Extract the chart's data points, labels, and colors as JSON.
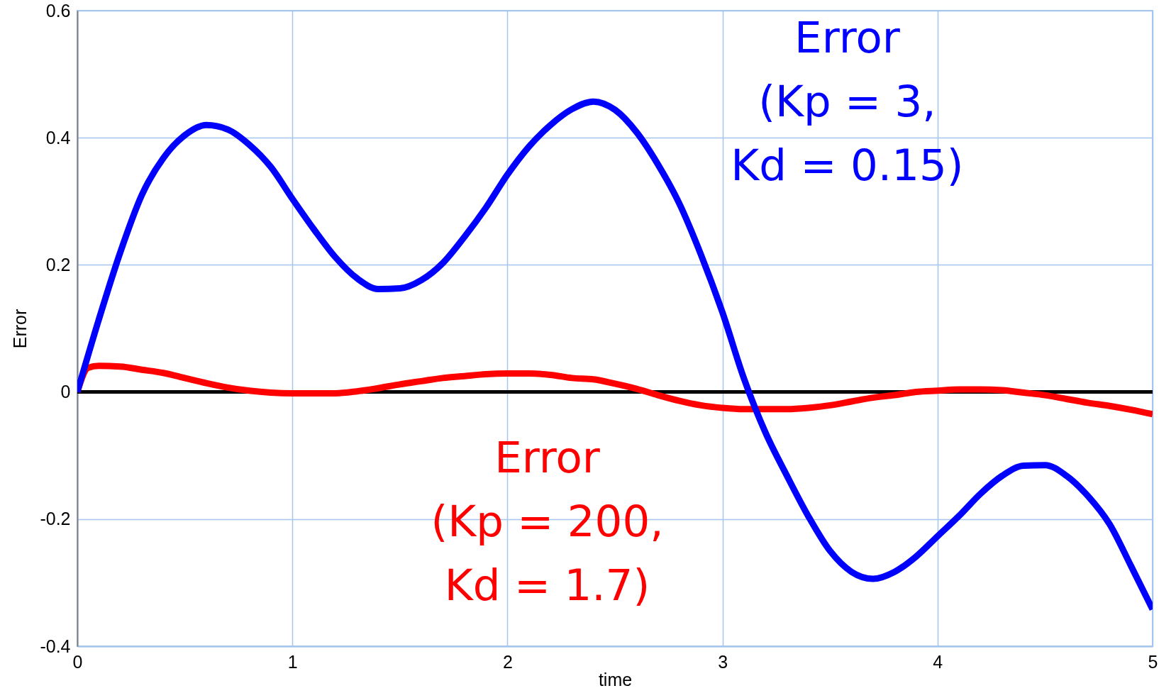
{
  "chart_data": {
    "type": "line",
    "xlabel": "time",
    "ylabel": "Error",
    "xlim": [
      0,
      5
    ],
    "ylim": [
      -0.4,
      0.6
    ],
    "xticks": [
      0,
      1,
      2,
      3,
      4,
      5
    ],
    "yticks": [
      -0.4,
      -0.2,
      0,
      0.2,
      0.4,
      0.6
    ],
    "grid": true,
    "line_style": "solid",
    "ref_lines": [
      {
        "axis": "y",
        "value": 0,
        "color": "#000000"
      }
    ],
    "series": [
      {
        "name": "Error (Kp = 3, Kd = 0.15)",
        "color": "#0000ff",
        "x": [
          0,
          0.1,
          0.2,
          0.3,
          0.4,
          0.5,
          0.6,
          0.7,
          0.8,
          0.9,
          1.0,
          1.1,
          1.2,
          1.3,
          1.4,
          1.5,
          1.6,
          1.7,
          1.8,
          1.9,
          2.0,
          2.1,
          2.2,
          2.3,
          2.4,
          2.5,
          2.6,
          2.7,
          2.8,
          2.9,
          3.0,
          3.1,
          3.2,
          3.3,
          3.4,
          3.5,
          3.6,
          3.7,
          3.8,
          3.9,
          4.0,
          4.1,
          4.2,
          4.3,
          4.4,
          4.5,
          4.6,
          4.7,
          4.8,
          4.9,
          5.0
        ],
        "values": [
          0,
          0.114,
          0.22,
          0.31,
          0.368,
          0.404,
          0.42,
          0.413,
          0.389,
          0.354,
          0.304,
          0.256,
          0.212,
          0.179,
          0.162,
          0.163,
          0.176,
          0.203,
          0.244,
          0.29,
          0.342,
          0.386,
          0.42,
          0.445,
          0.457,
          0.444,
          0.409,
          0.358,
          0.296,
          0.216,
          0.125,
          0.021,
          -0.064,
          -0.132,
          -0.196,
          -0.25,
          -0.283,
          -0.294,
          -0.283,
          -0.259,
          -0.227,
          -0.195,
          -0.16,
          -0.132,
          -0.116,
          -0.115,
          -0.132,
          -0.164,
          -0.208,
          -0.274,
          -0.342
        ]
      },
      {
        "name": "Error (Kp = 200, Kd = 1.7)",
        "color": "#ff0000",
        "x": [
          0,
          0.05,
          0.1,
          0.2,
          0.3,
          0.4,
          0.5,
          0.6,
          0.7,
          0.8,
          0.9,
          1.0,
          1.1,
          1.2,
          1.3,
          1.4,
          1.5,
          1.6,
          1.7,
          1.8,
          1.9,
          2.0,
          2.1,
          2.2,
          2.3,
          2.4,
          2.5,
          2.6,
          2.7,
          2.8,
          2.9,
          3.0,
          3.1,
          3.2,
          3.3,
          3.4,
          3.5,
          3.6,
          3.7,
          3.8,
          3.9,
          4.0,
          4.1,
          4.2,
          4.3,
          4.4,
          4.5,
          4.6,
          4.7,
          4.8,
          4.9,
          5.0
        ],
        "values": [
          0,
          0.038,
          0.041,
          0.04,
          0.035,
          0.03,
          0.022,
          0.014,
          0.007,
          0.002,
          -0.001,
          -0.002,
          -0.002,
          -0.002,
          0.001,
          0.006,
          0.012,
          0.017,
          0.022,
          0.025,
          0.028,
          0.029,
          0.029,
          0.027,
          0.022,
          0.02,
          0.013,
          0.005,
          -0.005,
          -0.014,
          -0.021,
          -0.025,
          -0.027,
          -0.027,
          -0.027,
          -0.025,
          -0.021,
          -0.015,
          -0.009,
          -0.005,
          0.0,
          0.002,
          0.004,
          0.004,
          0.003,
          -0.001,
          -0.005,
          -0.011,
          -0.017,
          -0.022,
          -0.028,
          -0.035
        ]
      }
    ]
  }
}
